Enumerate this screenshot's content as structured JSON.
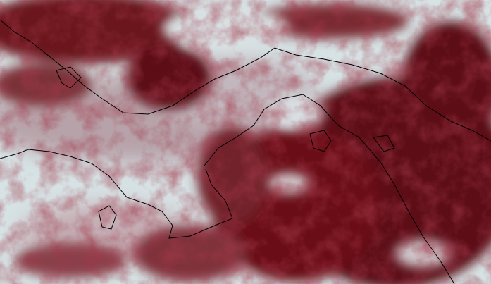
{
  "image": {
    "kind": "satellite-infrared-composite",
    "colors": {
      "cold_cloud": "#5c0a12",
      "mid_cloud": "#8a3a42",
      "clear_surface": "#d6e2e4",
      "haze": "#b9a9b0",
      "coastline": "#000000"
    }
  }
}
